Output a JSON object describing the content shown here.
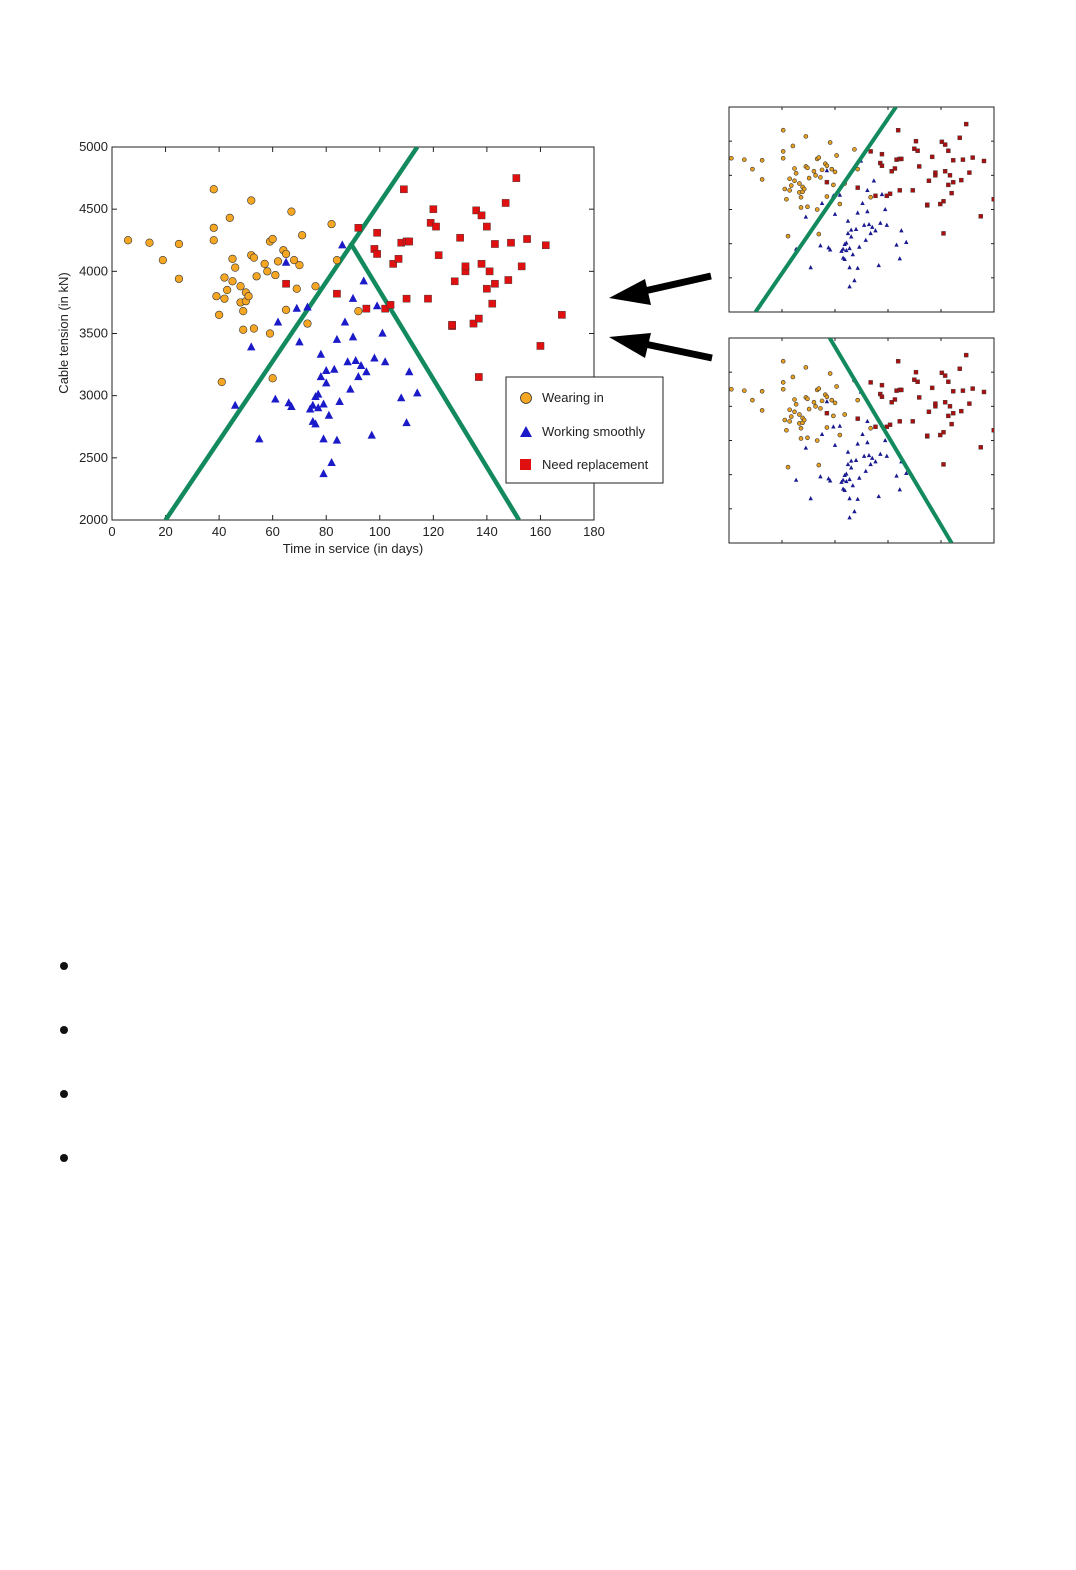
{
  "chart_data": [
    {
      "type": "scatter",
      "title": "",
      "xlabel": "Time in service (in days)",
      "ylabel": "Cable tension (in kN)",
      "xlim": [
        0,
        180
      ],
      "ylim": [
        2000,
        5000
      ],
      "xticks": [
        "0",
        "20",
        "40",
        "60",
        "80",
        "100",
        "120",
        "140",
        "160",
        "180"
      ],
      "yticks": [
        "2000",
        "2500",
        "3000",
        "3500",
        "4000",
        "4500",
        "5000"
      ],
      "grid": false,
      "legend_position": "lower-right",
      "series": [
        {
          "name": "Wearing in",
          "marker": "circle",
          "color": "#f5a623",
          "points": [
            [
              6,
              4250
            ],
            [
              14,
              4230
            ],
            [
              19,
              4090
            ],
            [
              25,
              4220
            ],
            [
              25,
              3940
            ],
            [
              38,
              4660
            ],
            [
              38,
              4350
            ],
            [
              38,
              4250
            ],
            [
              39,
              3800
            ],
            [
              40,
              3650
            ],
            [
              41,
              3110
            ],
            [
              42,
              3950
            ],
            [
              42,
              3780
            ],
            [
              43,
              3850
            ],
            [
              44,
              4430
            ],
            [
              45,
              3920
            ],
            [
              45,
              4100
            ],
            [
              46,
              4030
            ],
            [
              48,
              3880
            ],
            [
              48,
              3750
            ],
            [
              49,
              3530
            ],
            [
              49,
              3680
            ],
            [
              50,
              3830
            ],
            [
              50,
              3760
            ],
            [
              51,
              3800
            ],
            [
              52,
              4570
            ],
            [
              52,
              4130
            ],
            [
              53,
              4110
            ],
            [
              53,
              3540
            ],
            [
              54,
              3960
            ],
            [
              57,
              4060
            ],
            [
              58,
              4000
            ],
            [
              59,
              3500
            ],
            [
              59,
              4240
            ],
            [
              60,
              4260
            ],
            [
              60,
              3140
            ],
            [
              61,
              3970
            ],
            [
              62,
              4080
            ],
            [
              64,
              4170
            ],
            [
              65,
              4140
            ],
            [
              65,
              3690
            ],
            [
              67,
              4480
            ],
            [
              68,
              4090
            ],
            [
              69,
              3860
            ],
            [
              70,
              4050
            ],
            [
              71,
              4290
            ],
            [
              73,
              3580
            ],
            [
              76,
              3880
            ],
            [
              82,
              4380
            ],
            [
              84,
              4090
            ],
            [
              92,
              3680
            ]
          ]
        },
        {
          "name": "Working smoothly",
          "marker": "triangle",
          "color": "#1a1ac8",
          "points": [
            [
              46,
              2920
            ],
            [
              52,
              3390
            ],
            [
              55,
              2650
            ],
            [
              61,
              2970
            ],
            [
              62,
              3590
            ],
            [
              65,
              4070
            ],
            [
              66,
              2940
            ],
            [
              67,
              2910
            ],
            [
              69,
              3700
            ],
            [
              70,
              3430
            ],
            [
              73,
              3710
            ],
            [
              74,
              2890
            ],
            [
              75,
              2790
            ],
            [
              75,
              2920
            ],
            [
              76,
              2770
            ],
            [
              76,
              2990
            ],
            [
              77,
              2900
            ],
            [
              77,
              3010
            ],
            [
              78,
              3150
            ],
            [
              78,
              3330
            ],
            [
              79,
              2370
            ],
            [
              79,
              2930
            ],
            [
              79,
              2650
            ],
            [
              80,
              3100
            ],
            [
              80,
              3200
            ],
            [
              81,
              2840
            ],
            [
              82,
              2460
            ],
            [
              83,
              3210
            ],
            [
              84,
              2640
            ],
            [
              84,
              3450
            ],
            [
              85,
              2950
            ],
            [
              86,
              4210
            ],
            [
              87,
              3590
            ],
            [
              88,
              3270
            ],
            [
              89,
              3050
            ],
            [
              90,
              3470
            ],
            [
              90,
              3780
            ],
            [
              91,
              3280
            ],
            [
              92,
              3150
            ],
            [
              93,
              3240
            ],
            [
              94,
              3920
            ],
            [
              95,
              3190
            ],
            [
              97,
              2680
            ],
            [
              98,
              3300
            ],
            [
              99,
              3720
            ],
            [
              101,
              3500
            ],
            [
              102,
              3270
            ],
            [
              108,
              2980
            ],
            [
              110,
              2780
            ],
            [
              111,
              3190
            ],
            [
              114,
              3020
            ]
          ]
        },
        {
          "name": "Need replacement",
          "marker": "square",
          "color": "#e01010",
          "points": [
            [
              65,
              3900
            ],
            [
              84,
              3820
            ],
            [
              92,
              4350
            ],
            [
              95,
              3700
            ],
            [
              98,
              4180
            ],
            [
              99,
              4310
            ],
            [
              99,
              4140
            ],
            [
              102,
              3700
            ],
            [
              104,
              3730
            ],
            [
              105,
              4060
            ],
            [
              107,
              4100
            ],
            [
              108,
              4230
            ],
            [
              109,
              4660
            ],
            [
              110,
              3780
            ],
            [
              110,
              4240
            ],
            [
              111,
              4240
            ],
            [
              118,
              3780
            ],
            [
              119,
              4390
            ],
            [
              120,
              4500
            ],
            [
              121,
              4360
            ],
            [
              122,
              4130
            ],
            [
              127,
              3560
            ],
            [
              127,
              3570
            ],
            [
              128,
              3920
            ],
            [
              130,
              4270
            ],
            [
              132,
              4000
            ],
            [
              132,
              4040
            ],
            [
              135,
              3580
            ],
            [
              136,
              4490
            ],
            [
              137,
              3150
            ],
            [
              137,
              3620
            ],
            [
              138,
              4450
            ],
            [
              138,
              4060
            ],
            [
              140,
              4360
            ],
            [
              140,
              3860
            ],
            [
              141,
              4000
            ],
            [
              142,
              3740
            ],
            [
              143,
              3900
            ],
            [
              143,
              4220
            ],
            [
              147,
              4550
            ],
            [
              148,
              3930
            ],
            [
              149,
              4230
            ],
            [
              151,
              4750
            ],
            [
              153,
              4040
            ],
            [
              155,
              4260
            ],
            [
              160,
              3400
            ],
            [
              162,
              4210
            ],
            [
              168,
              3650
            ]
          ]
        }
      ],
      "boundaries": [
        {
          "from": [
            20,
            2000
          ],
          "to": [
            114,
            5000
          ]
        },
        {
          "from": [
            89,
            4230
          ],
          "to": [
            152,
            2000
          ]
        }
      ]
    },
    {
      "type": "scatter",
      "title": "",
      "description_free": true,
      "axis_labels_shown": false,
      "boundary": {
        "from": [
          0.1,
          0
        ],
        "to": [
          0.63,
          1
        ]
      },
      "series_colors": [
        "#e8a020",
        "#1a1a90",
        "#a81010"
      ]
    },
    {
      "type": "scatter",
      "title": "",
      "axis_labels_shown": false,
      "boundary": {
        "from": [
          0.38,
          1
        ],
        "to": [
          0.84,
          0
        ]
      },
      "series_colors": [
        "#e8a020",
        "#1a1a90",
        "#a81010"
      ]
    }
  ],
  "colors": {
    "boundary": "#138a5e",
    "arrow": "#000000",
    "axis": "#222222",
    "orange": "#f5a623",
    "blue": "#1a1ac8",
    "red": "#e01010",
    "thumb_orange": "#e8a020",
    "thumb_blue": "#1a1a90",
    "thumb_red": "#a81010"
  },
  "bullets": [
    "",
    "",
    "",
    ""
  ]
}
